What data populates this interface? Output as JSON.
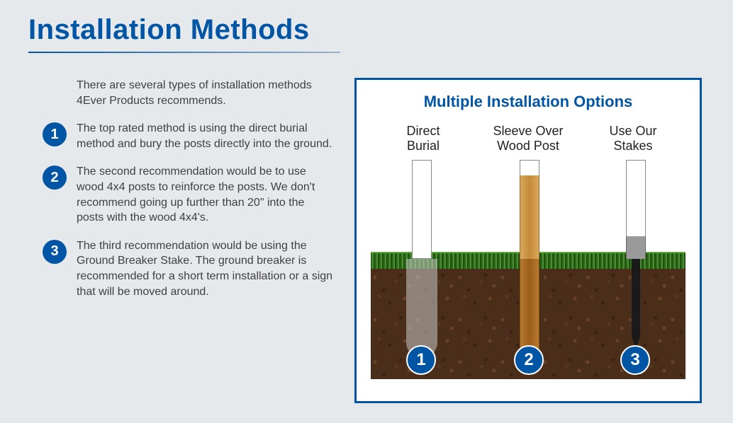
{
  "title": "Installation Methods",
  "intro": "There are several types of installation methods 4Ever Products recommends.",
  "methods": [
    {
      "num": "1",
      "text": "The top rated method is using the direct burial method and bury the posts directly into the ground."
    },
    {
      "num": "2",
      "text": "The second recommendation would be to use wood 4x4 posts to reinforce the posts. We don't recommend going up further than 20\" into the posts with the wood 4x4's."
    },
    {
      "num": "3",
      "text": "The third recommendation would be using the Ground Breaker Stake. The ground breaker is recommended for a short term installation or a sign that will be moved around."
    }
  ],
  "diagram": {
    "title": "Multiple Installation Options",
    "options": [
      {
        "label": "Direct\nBurial",
        "num": "1"
      },
      {
        "label": "Sleeve Over\nWood Post",
        "num": "2"
      },
      {
        "label": "Use Our\nStakes",
        "num": "3"
      }
    ]
  },
  "colors": {
    "primary": "#0055a5",
    "background": "#e6e9ec",
    "text": "#404040"
  }
}
